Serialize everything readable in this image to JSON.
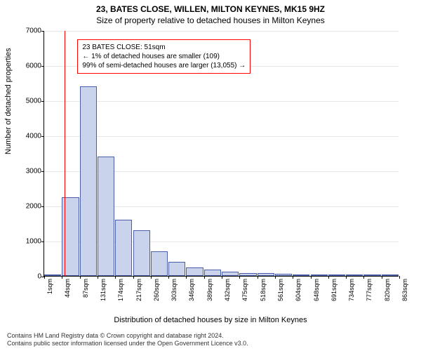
{
  "title_line1": "23, BATES CLOSE, WILLEN, MILTON KEYNES, MK15 9HZ",
  "title_line2": "Size of property relative to detached houses in Milton Keynes",
  "ylabel": "Number of detached properties",
  "xlabel": "Distribution of detached houses by size in Milton Keynes",
  "chart": {
    "type": "histogram",
    "ylim": [
      0,
      7000
    ],
    "ytick_step": 1000,
    "xticks": [
      "1sqm",
      "44sqm",
      "87sqm",
      "131sqm",
      "174sqm",
      "217sqm",
      "260sqm",
      "303sqm",
      "346sqm",
      "389sqm",
      "432sqm",
      "475sqm",
      "518sqm",
      "561sqm",
      "604sqm",
      "648sqm",
      "691sqm",
      "734sqm",
      "777sqm",
      "820sqm",
      "863sqm"
    ],
    "bars": [
      50,
      2250,
      5400,
      3400,
      1600,
      1300,
      700,
      400,
      250,
      180,
      120,
      90,
      80,
      60,
      50,
      40,
      30,
      25,
      20,
      15
    ],
    "bar_fill": "#cad3ec",
    "bar_stroke": "#4a5fa8",
    "background_color": "#ffffff",
    "grid_color": "#e8e8e8",
    "marker_x": 51,
    "marker_color": "#ff0000",
    "callout_border": "#ff0000"
  },
  "callout": {
    "line1": "23 BATES CLOSE: 51sqm",
    "line2": "← 1% of detached houses are smaller (109)",
    "line3": "99% of semi-detached houses are larger (13,055) →"
  },
  "footer": {
    "line1": "Contains HM Land Registry data © Crown copyright and database right 2024.",
    "line2": "Contains public sector information licensed under the Open Government Licence v3.0."
  }
}
